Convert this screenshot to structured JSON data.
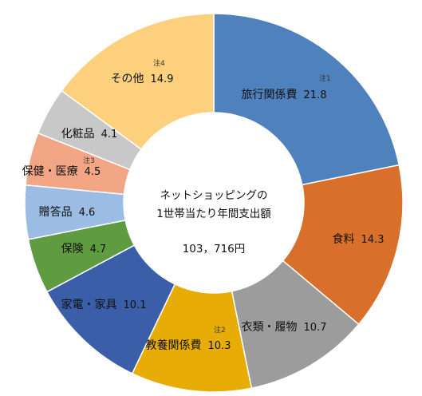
{
  "chart_data": {
    "type": "pie",
    "variant": "donut",
    "center_title_line1": "ネットショッピングの",
    "center_title_line2": "1世帯当たり年間支出額",
    "center_total": "103，716円",
    "slices": [
      {
        "label": "旅行関係費",
        "value": 21.8,
        "note": "注1",
        "color": "#4f81bd"
      },
      {
        "label": "食料",
        "value": 14.3,
        "note": "",
        "color": "#d8702b"
      },
      {
        "label": "衣類・履物",
        "value": 10.7,
        "note": "",
        "color": "#9c9c9c"
      },
      {
        "label": "教養関係費",
        "value": 10.3,
        "note": "注2",
        "color": "#e7ad06"
      },
      {
        "label": "家電・家具",
        "value": 10.1,
        "note": "",
        "color": "#3a5ea8"
      },
      {
        "label": "保険",
        "value": 4.7,
        "note": "",
        "color": "#5f9c41"
      },
      {
        "label": "贈答品",
        "value": 4.6,
        "note": "",
        "color": "#9bbde3"
      },
      {
        "label": "保健・医療",
        "value": 4.5,
        "note": "注3",
        "color": "#f2a686"
      },
      {
        "label": "化粧品",
        "value": 4.1,
        "note": "",
        "color": "#c8c8c8"
      },
      {
        "label": "その他",
        "value": 14.9,
        "note": "注4",
        "color": "#fdd07e"
      }
    ]
  }
}
